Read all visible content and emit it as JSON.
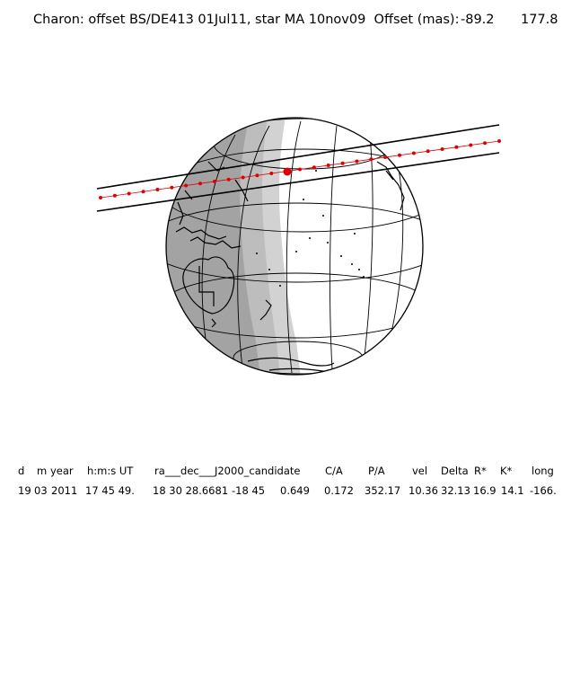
{
  "title": {
    "text": "Charon: offset BS/DE413 01Jul11, star MA 10nov09  Offset (mas):",
    "offset_x": "-89.2",
    "offset_y": "177.8"
  },
  "table": {
    "headers": [
      "d",
      "m",
      "year",
      "h:m:s UT",
      "ra___dec___J2000_candidate",
      "C/A",
      "P/A",
      "vel",
      "Delta",
      "R*",
      "K*",
      "long"
    ],
    "values": [
      "19",
      "03",
      "2011",
      "17 45 49.",
      "18 30 28.6681",
      "-18 45",
      "0.649",
      "0.172",
      "352.17",
      "10.36",
      "32.13",
      "16.9",
      "14.1",
      "-166."
    ]
  },
  "colors": {
    "night": "#a3a3a3",
    "twilight": "#d2d2d2",
    "day": "#ffffff",
    "track": "#e00000",
    "lines": "#000000"
  }
}
